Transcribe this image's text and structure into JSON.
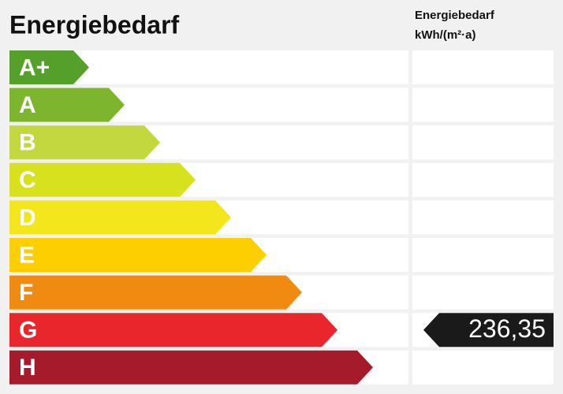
{
  "title": "Energiebedarf",
  "column_header": [
    "Energiebedarf",
    "kWh/(m²·a)"
  ],
  "classes": [
    {
      "label": "A+",
      "color": "#55a02b"
    },
    {
      "label": "A",
      "color": "#7db52f"
    },
    {
      "label": "B",
      "color": "#c3d83e"
    },
    {
      "label": "C",
      "color": "#d8e11d"
    },
    {
      "label": "D",
      "color": "#f3e61d"
    },
    {
      "label": "E",
      "color": "#fdcf00"
    },
    {
      "label": "F",
      "color": "#f08a10"
    },
    {
      "label": "G",
      "color": "#e8262b",
      "value": "236,35"
    },
    {
      "label": "H",
      "color": "#a61b2b"
    }
  ]
}
